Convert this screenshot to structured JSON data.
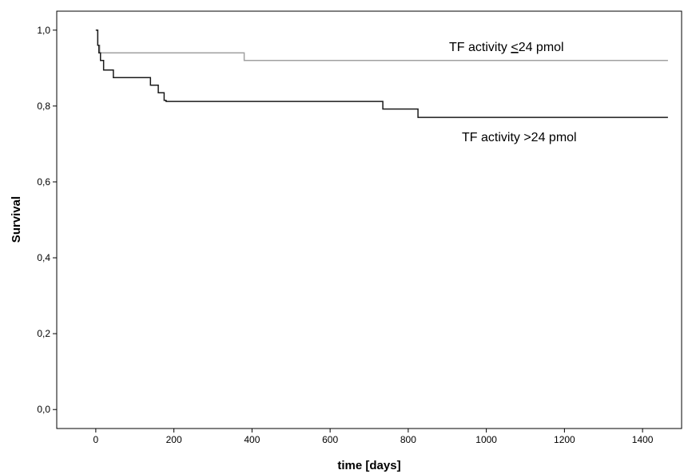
{
  "chart_data": {
    "type": "line",
    "xlabel": "time [days]",
    "ylabel": "Survival",
    "xlim": [
      -100,
      1500
    ],
    "ylim": [
      -0.05,
      1.05
    ],
    "x_ticks": [
      0,
      200,
      400,
      600,
      800,
      1000,
      1200,
      1400
    ],
    "x_tick_labels": [
      "0",
      "200",
      "400",
      "600",
      "800",
      "1000",
      "1200",
      "1400"
    ],
    "y_ticks": [
      0.0,
      0.2,
      0.4,
      0.6,
      0.8,
      1.0
    ],
    "y_tick_labels": [
      "0,0",
      "0,2",
      "0,4",
      "0,6",
      "0,8",
      "1,0"
    ],
    "grid": false,
    "series": [
      {
        "name": "TF activity ≤24 pmol",
        "label_prefix": "TF activity ",
        "label_underlined": "<",
        "label_suffix": "24 pmol",
        "color": "#a0a0a0",
        "step": true,
        "x": [
          0,
          5,
          10,
          380,
          1465
        ],
        "y": [
          1.0,
          0.96,
          0.94,
          0.92,
          0.92
        ]
      },
      {
        "name": "TF activity >24 pmol",
        "label_prefix": "TF activity >24 pmol",
        "label_underlined": "",
        "label_suffix": "",
        "color": "#1a1a1a",
        "step": true,
        "x": [
          0,
          5,
          8,
          12,
          20,
          45,
          140,
          160,
          175,
          180,
          735,
          825,
          1465
        ],
        "y": [
          1.0,
          0.96,
          0.94,
          0.92,
          0.895,
          0.875,
          0.855,
          0.835,
          0.815,
          0.812,
          0.792,
          0.77,
          0.77
        ]
      }
    ]
  }
}
